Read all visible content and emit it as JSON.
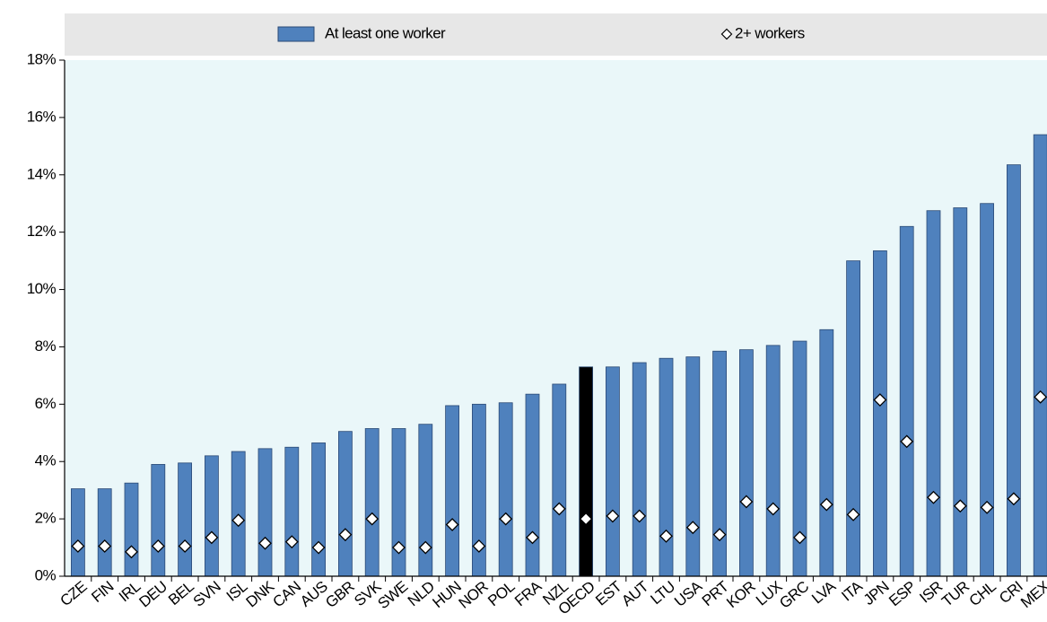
{
  "chart_data": {
    "type": "bar",
    "categories": [
      "CZE",
      "FIN",
      "IRL",
      "DEU",
      "BEL",
      "SVN",
      "ISL",
      "DNK",
      "CAN",
      "AUS",
      "GBR",
      "SVK",
      "SWE",
      "NLD",
      "HUN",
      "NOR",
      "POL",
      "FRA",
      "NZL",
      "OECD",
      "EST",
      "AUT",
      "LTU",
      "USA",
      "PRT",
      "KOR",
      "LUX",
      "GRC",
      "LVA",
      "ITA",
      "JPN",
      "ESP",
      "ISR",
      "TUR",
      "CHL",
      "CRI",
      "MEX"
    ],
    "series": [
      {
        "name": "At least one worker",
        "type": "bar",
        "color": "#4f81bd",
        "values": [
          3.05,
          3.05,
          3.25,
          3.9,
          3.95,
          4.2,
          4.35,
          4.45,
          4.5,
          4.65,
          5.05,
          5.15,
          5.15,
          5.3,
          5.95,
          6.0,
          6.05,
          6.35,
          6.7,
          7.3,
          7.3,
          7.45,
          7.6,
          7.65,
          7.85,
          7.9,
          8.05,
          8.2,
          8.6,
          11.0,
          11.35,
          12.2,
          12.75,
          12.85,
          13.0,
          14.35,
          15.4
        ]
      },
      {
        "name": "2+ workers",
        "type": "scatter",
        "marker": "diamond",
        "color": "#ffffff",
        "values": [
          1.05,
          1.05,
          0.85,
          1.05,
          1.05,
          1.35,
          1.95,
          1.15,
          1.2,
          1.0,
          1.45,
          2.0,
          1.0,
          1.0,
          1.8,
          1.05,
          2.0,
          1.35,
          2.35,
          2.0,
          2.1,
          2.1,
          1.4,
          1.7,
          1.45,
          2.6,
          2.35,
          1.35,
          2.5,
          2.15,
          6.15,
          4.7,
          2.75,
          2.45,
          2.4,
          2.7,
          6.25
        ]
      }
    ],
    "highlight": {
      "category": "OECD",
      "color": "#000000"
    },
    "ylim": [
      0,
      18
    ],
    "yticks": [
      {
        "value": 0,
        "label": "0%"
      },
      {
        "value": 2,
        "label": "2%"
      },
      {
        "value": 4,
        "label": "4%"
      },
      {
        "value": 6,
        "label": "6%"
      },
      {
        "value": 8,
        "label": "8%"
      },
      {
        "value": 10,
        "label": "10%"
      },
      {
        "value": 12,
        "label": "12%"
      },
      {
        "value": 14,
        "label": "14%"
      },
      {
        "value": 16,
        "label": "16%"
      },
      {
        "value": 18,
        "label": "18%"
      }
    ],
    "legend": "top",
    "plot_background": "#eaf7f9"
  }
}
